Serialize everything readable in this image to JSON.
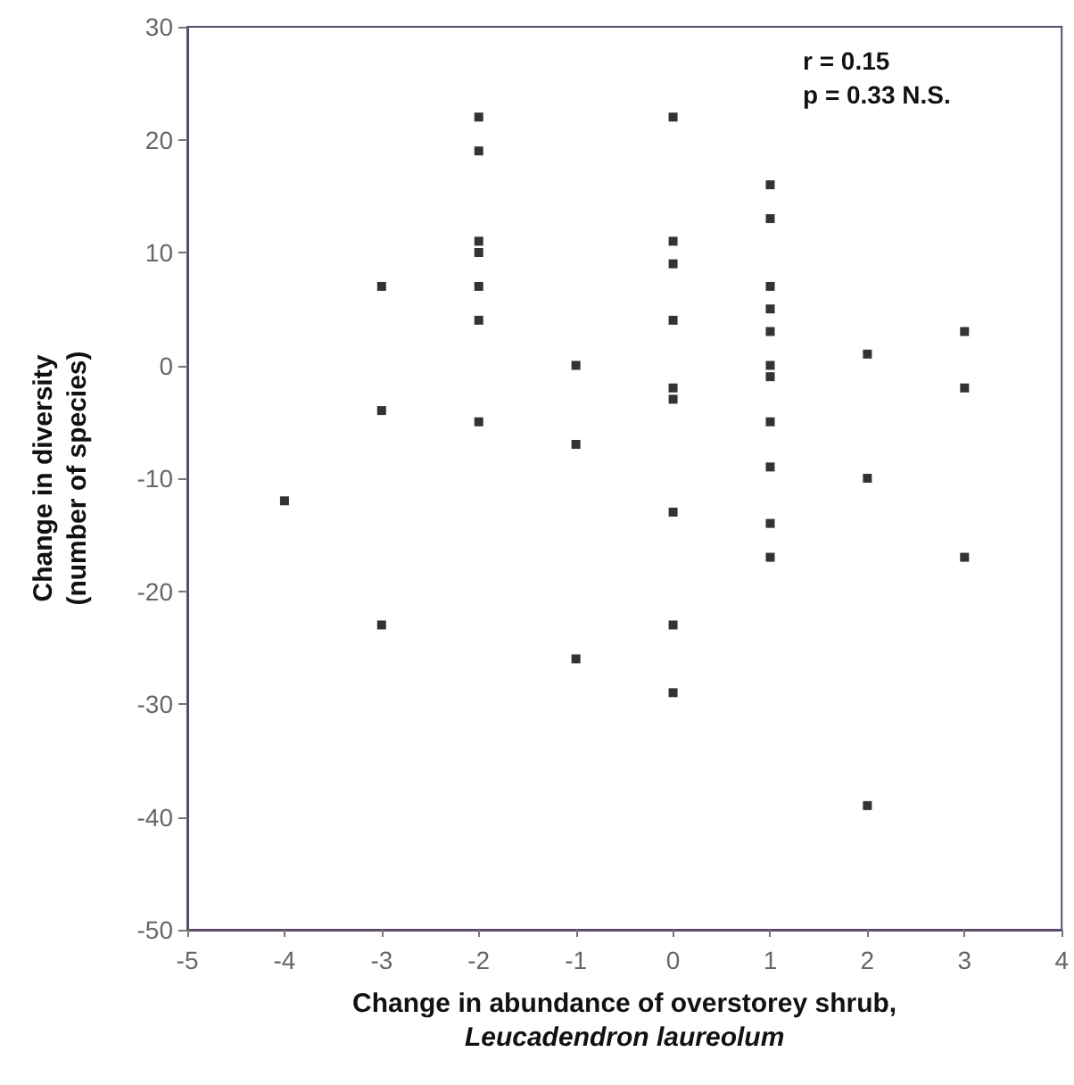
{
  "chart_data": {
    "type": "scatter",
    "xlabel": "Change in abundance of overstorey shrub,\nLeucadendron laureolum",
    "ylabel": "Change in diversity\n(number of species)",
    "annotations": [
      "r = 0.15",
      "p = 0.33 N.S."
    ],
    "x": [
      -4,
      -3,
      -3,
      -3,
      -2,
      -2,
      -2,
      -2,
      -2,
      -2,
      -2,
      -1,
      -1,
      -1,
      0,
      0,
      0,
      0,
      0,
      0,
      0,
      0,
      0,
      1,
      1,
      1,
      1,
      1,
      1,
      1,
      1,
      1,
      1,
      1,
      2,
      2,
      2,
      3,
      3,
      3
    ],
    "values": [
      -12,
      7,
      -4,
      -23,
      22,
      19,
      11,
      10,
      7,
      4,
      -5,
      0,
      -7,
      -26,
      22,
      11,
      9,
      4,
      -2,
      -3,
      -13,
      -23,
      -29,
      16,
      13,
      7,
      5,
      3,
      0,
      -1,
      -5,
      -9,
      -14,
      -17,
      1,
      -10,
      -39,
      3,
      -2,
      -17
    ],
    "color": "#000000",
    "marker": "square",
    "grid": false,
    "xlim": [
      -5,
      4
    ],
    "xticks": [
      -5,
      -4,
      -3,
      -2,
      -1,
      0,
      1,
      2,
      3,
      4
    ],
    "ylim": [
      -50,
      30
    ],
    "yticks": [
      -50,
      -40,
      -30,
      -20,
      -10,
      0,
      10,
      20,
      30
    ]
  }
}
